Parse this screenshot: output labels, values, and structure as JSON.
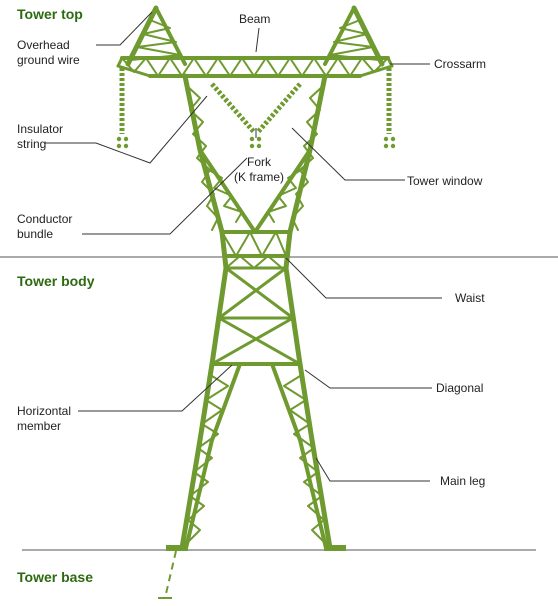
{
  "colors": {
    "tower": "#6e9a2f",
    "section_heading": "#2e6a12",
    "leader": "#333333",
    "divider": "#555555"
  },
  "sections": {
    "top": "Tower top",
    "body": "Tower body",
    "base": "Tower base"
  },
  "labels": {
    "beam": "Beam",
    "overhead_ground_wire": "Overhead\nground wire",
    "crossarm": "Crossarm",
    "insulator_string": "Insulator\nstring",
    "fork": "Fork\n(K frame)",
    "tower_window": "Tower window",
    "conductor_bundle": "Conductor\nbundle",
    "waist": "Waist",
    "diagonal": "Diagonal",
    "horizontal_member": "Horizontal\nmember",
    "main_leg": "Main leg"
  }
}
